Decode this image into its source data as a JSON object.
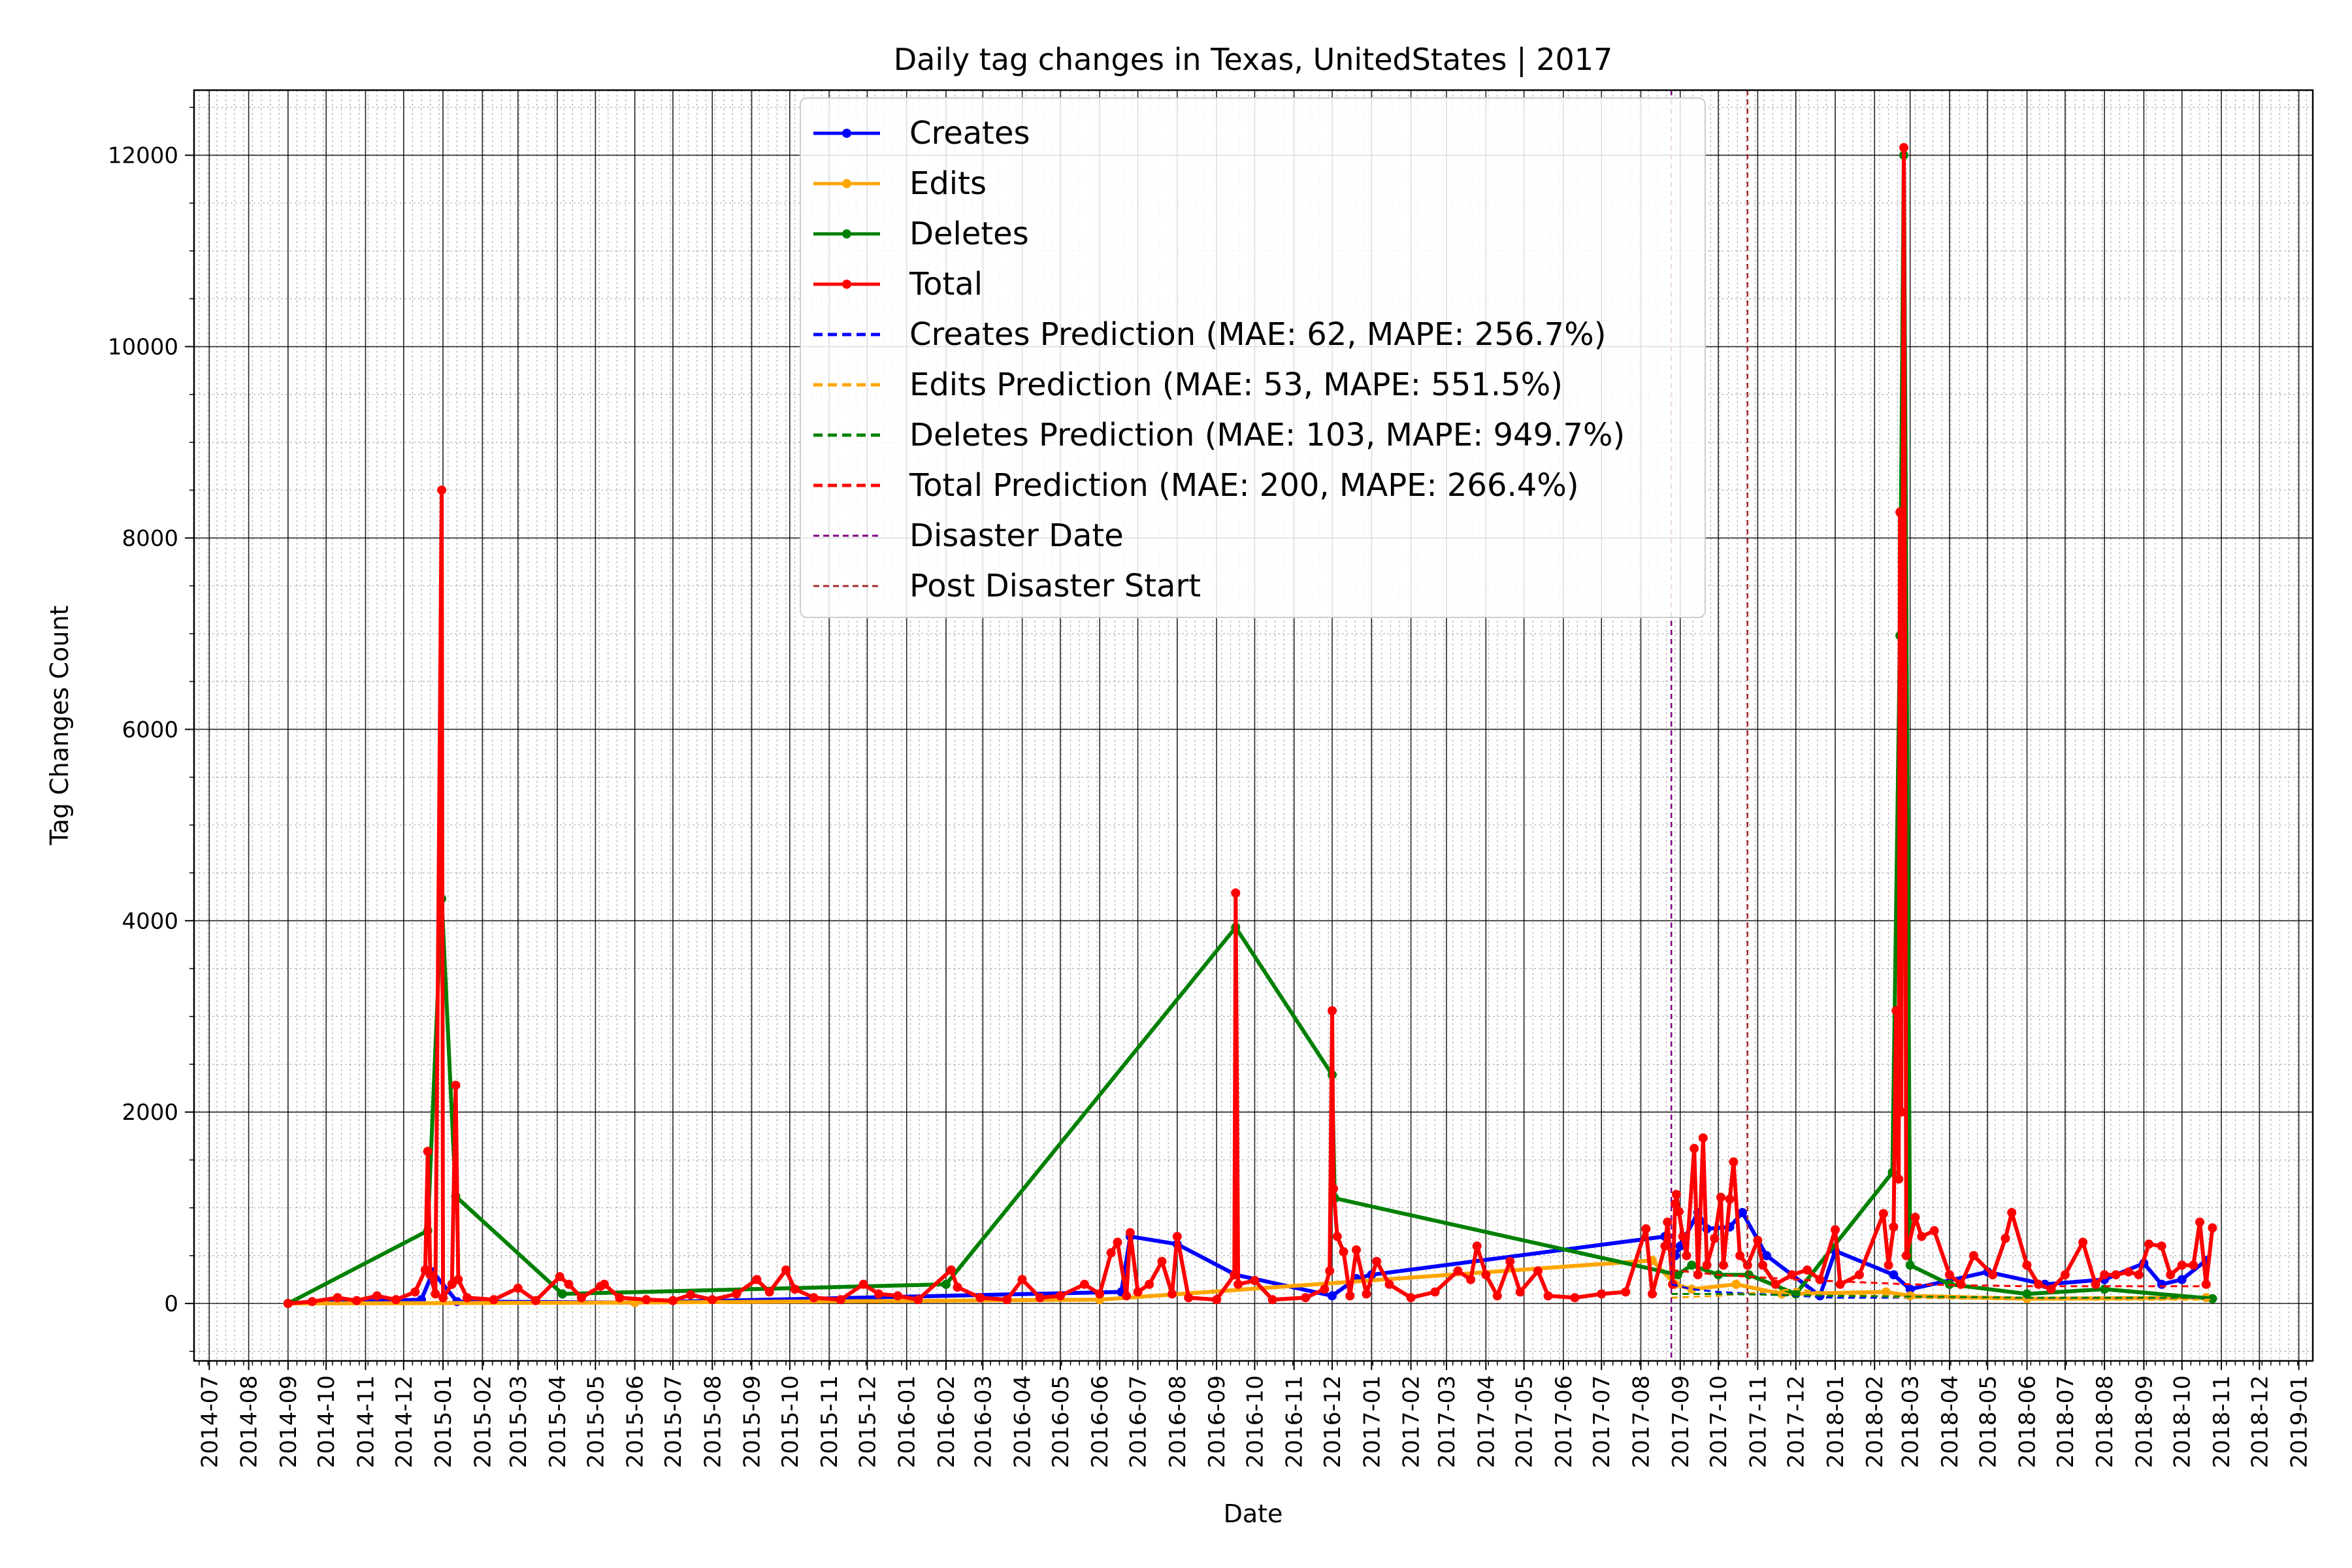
{
  "chart_data": {
    "type": "line",
    "title": "Daily tag changes in Texas, UnitedStates | 2017",
    "xlabel": "Date",
    "ylabel": "Tag Changes Count",
    "x_range": [
      "2014-06-19",
      "2019-01-12"
    ],
    "ylim": [
      -600,
      12680
    ],
    "yticks": [
      0,
      2000,
      4000,
      6000,
      8000,
      10000,
      12000
    ],
    "xticks": [
      "2014-07",
      "2014-08",
      "2014-09",
      "2014-10",
      "2014-11",
      "2014-12",
      "2015-01",
      "2015-02",
      "2015-03",
      "2015-04",
      "2015-05",
      "2015-06",
      "2015-07",
      "2015-08",
      "2015-09",
      "2015-10",
      "2015-11",
      "2015-12",
      "2016-01",
      "2016-02",
      "2016-03",
      "2016-04",
      "2016-05",
      "2016-06",
      "2016-07",
      "2016-08",
      "2016-09",
      "2016-10",
      "2016-11",
      "2016-12",
      "2017-01",
      "2017-02",
      "2017-03",
      "2017-04",
      "2017-05",
      "2017-06",
      "2017-07",
      "2017-08",
      "2017-09",
      "2017-10",
      "2017-11",
      "2017-12",
      "2018-01",
      "2018-02",
      "2018-03",
      "2018-04",
      "2018-05",
      "2018-06",
      "2018-07",
      "2018-08",
      "2018-09",
      "2018-10",
      "2018-11",
      "2018-12",
      "2019-01"
    ],
    "grid": true,
    "legend_position": "top-center",
    "series": [
      {
        "name": "Creates",
        "color": "#0000ff",
        "style": "line-marker",
        "points": [
          [
            "2014-09-01",
            0
          ],
          [
            "2014-12-15",
            40
          ],
          [
            "2014-12-24",
            330
          ],
          [
            "2015-01-12",
            20
          ],
          [
            "2015-06-01",
            10
          ],
          [
            "2016-06-18",
            120
          ],
          [
            "2016-06-25",
            700
          ],
          [
            "2016-08-01",
            620
          ],
          [
            "2016-09-16",
            300
          ],
          [
            "2016-12-01",
            80
          ],
          [
            "2016-12-20",
            260
          ],
          [
            "2017-01-01",
            300
          ],
          [
            "2017-08-20",
            700
          ],
          [
            "2017-08-28",
            500
          ],
          [
            "2017-09-01",
            600
          ],
          [
            "2017-09-15",
            950
          ],
          [
            "2017-09-22",
            780
          ],
          [
            "2017-10-10",
            800
          ],
          [
            "2017-10-20",
            950
          ],
          [
            "2017-11-08",
            500
          ],
          [
            "2017-12-20",
            80
          ],
          [
            "2018-01-01",
            550
          ],
          [
            "2018-02-16",
            300
          ],
          [
            "2018-03-01",
            150
          ],
          [
            "2018-05-01",
            330
          ],
          [
            "2018-06-15",
            200
          ],
          [
            "2018-08-01",
            250
          ],
          [
            "2018-09-01",
            420
          ],
          [
            "2018-09-15",
            200
          ],
          [
            "2018-10-01",
            250
          ],
          [
            "2018-10-20",
            450
          ]
        ]
      },
      {
        "name": "Edits",
        "color": "#ffa500",
        "style": "line-marker",
        "points": [
          [
            "2014-09-01",
            0
          ],
          [
            "2015-06-01",
            10
          ],
          [
            "2016-06-01",
            40
          ],
          [
            "2017-08-10",
            450
          ],
          [
            "2017-08-28",
            200
          ],
          [
            "2017-09-10",
            150
          ],
          [
            "2017-10-15",
            200
          ],
          [
            "2017-11-20",
            100
          ],
          [
            "2018-02-10",
            120
          ],
          [
            "2018-03-01",
            80
          ],
          [
            "2018-06-01",
            50
          ],
          [
            "2018-10-20",
            60
          ]
        ]
      },
      {
        "name": "Deletes",
        "color": "#008000",
        "style": "line-marker",
        "points": [
          [
            "2014-09-01",
            0
          ],
          [
            "2014-12-20",
            760
          ],
          [
            "2014-12-31",
            4230
          ],
          [
            "2015-01-11",
            1120
          ],
          [
            "2015-04-05",
            100
          ],
          [
            "2016-02-01",
            200
          ],
          [
            "2016-09-16",
            3930
          ],
          [
            "2016-12-01",
            2390
          ],
          [
            "2016-12-03",
            1100
          ],
          [
            "2017-08-30",
            300
          ],
          [
            "2017-09-10",
            400
          ],
          [
            "2017-10-01",
            300
          ],
          [
            "2017-10-25",
            300
          ],
          [
            "2017-12-01",
            100
          ],
          [
            "2018-02-15",
            1370
          ],
          [
            "2018-02-21",
            6980
          ],
          [
            "2018-02-24",
            12000
          ],
          [
            "2018-03-01",
            400
          ],
          [
            "2018-04-01",
            200
          ],
          [
            "2018-06-01",
            100
          ],
          [
            "2018-08-01",
            150
          ],
          [
            "2018-10-25",
            50
          ]
        ]
      },
      {
        "name": "Total",
        "color": "#ff0000",
        "style": "line-marker",
        "points": [
          [
            "2014-09-01",
            0
          ],
          [
            "2014-09-20",
            20
          ],
          [
            "2014-10-10",
            60
          ],
          [
            "2014-10-25",
            30
          ],
          [
            "2014-11-10",
            80
          ],
          [
            "2014-11-25",
            40
          ],
          [
            "2014-12-10",
            120
          ],
          [
            "2014-12-18",
            350
          ],
          [
            "2014-12-20",
            1590
          ],
          [
            "2014-12-22",
            300
          ],
          [
            "2014-12-26",
            100
          ],
          [
            "2014-12-31",
            8500
          ],
          [
            "2015-01-01",
            60
          ],
          [
            "2015-01-08",
            200
          ],
          [
            "2015-01-11",
            2280
          ],
          [
            "2015-01-13",
            250
          ],
          [
            "2015-01-20",
            60
          ],
          [
            "2015-02-10",
            40
          ],
          [
            "2015-03-01",
            160
          ],
          [
            "2015-03-15",
            30
          ],
          [
            "2015-04-03",
            280
          ],
          [
            "2015-04-10",
            200
          ],
          [
            "2015-04-20",
            60
          ],
          [
            "2015-05-05",
            180
          ],
          [
            "2015-05-08",
            200
          ],
          [
            "2015-05-20",
            60
          ],
          [
            "2015-06-10",
            40
          ],
          [
            "2015-07-01",
            30
          ],
          [
            "2015-07-15",
            90
          ],
          [
            "2015-08-01",
            40
          ],
          [
            "2015-08-20",
            100
          ],
          [
            "2015-09-05",
            250
          ],
          [
            "2015-09-15",
            120
          ],
          [
            "2015-09-28",
            350
          ],
          [
            "2015-10-05",
            150
          ],
          [
            "2015-10-20",
            60
          ],
          [
            "2015-11-10",
            40
          ],
          [
            "2015-11-28",
            200
          ],
          [
            "2015-12-10",
            100
          ],
          [
            "2015-12-25",
            80
          ],
          [
            "2016-01-10",
            40
          ],
          [
            "2016-02-05",
            350
          ],
          [
            "2016-02-10",
            170
          ],
          [
            "2016-02-28",
            60
          ],
          [
            "2016-03-20",
            40
          ],
          [
            "2016-04-01",
            250
          ],
          [
            "2016-04-15",
            60
          ],
          [
            "2016-05-01",
            80
          ],
          [
            "2016-05-20",
            200
          ],
          [
            "2016-06-01",
            100
          ],
          [
            "2016-06-10",
            530
          ],
          [
            "2016-06-15",
            640
          ],
          [
            "2016-06-22",
            80
          ],
          [
            "2016-06-25",
            740
          ],
          [
            "2016-07-01",
            120
          ],
          [
            "2016-07-10",
            200
          ],
          [
            "2016-07-20",
            440
          ],
          [
            "2016-07-28",
            100
          ],
          [
            "2016-08-01",
            700
          ],
          [
            "2016-08-10",
            60
          ],
          [
            "2016-09-01",
            40
          ],
          [
            "2016-09-15",
            300
          ],
          [
            "2016-09-16",
            4290
          ],
          [
            "2016-09-18",
            200
          ],
          [
            "2016-10-01",
            240
          ],
          [
            "2016-10-15",
            40
          ],
          [
            "2016-11-10",
            60
          ],
          [
            "2016-11-25",
            150
          ],
          [
            "2016-11-29",
            340
          ],
          [
            "2016-12-01",
            3060
          ],
          [
            "2016-12-02",
            1200
          ],
          [
            "2016-12-05",
            700
          ],
          [
            "2016-12-10",
            540
          ],
          [
            "2016-12-15",
            80
          ],
          [
            "2016-12-20",
            560
          ],
          [
            "2016-12-28",
            100
          ],
          [
            "2017-01-05",
            440
          ],
          [
            "2017-01-15",
            200
          ],
          [
            "2017-02-01",
            60
          ],
          [
            "2017-02-20",
            120
          ],
          [
            "2017-03-10",
            340
          ],
          [
            "2017-03-20",
            250
          ],
          [
            "2017-03-25",
            600
          ],
          [
            "2017-04-01",
            300
          ],
          [
            "2017-04-10",
            80
          ],
          [
            "2017-04-20",
            440
          ],
          [
            "2017-04-28",
            120
          ],
          [
            "2017-05-12",
            340
          ],
          [
            "2017-05-20",
            80
          ],
          [
            "2017-06-10",
            60
          ],
          [
            "2017-07-01",
            100
          ],
          [
            "2017-07-20",
            120
          ],
          [
            "2017-08-05",
            780
          ],
          [
            "2017-08-10",
            100
          ],
          [
            "2017-08-20",
            600
          ],
          [
            "2017-08-22",
            850
          ],
          [
            "2017-08-26",
            200
          ],
          [
            "2017-08-28",
            1040
          ],
          [
            "2017-08-29",
            1140
          ],
          [
            "2017-08-31",
            960
          ],
          [
            "2017-09-03",
            700
          ],
          [
            "2017-09-06",
            500
          ],
          [
            "2017-09-12",
            1620
          ],
          [
            "2017-09-15",
            300
          ],
          [
            "2017-09-19",
            1730
          ],
          [
            "2017-09-22",
            400
          ],
          [
            "2017-09-28",
            680
          ],
          [
            "2017-10-03",
            1110
          ],
          [
            "2017-10-05",
            400
          ],
          [
            "2017-10-10",
            1090
          ],
          [
            "2017-10-13",
            1480
          ],
          [
            "2017-10-18",
            500
          ],
          [
            "2017-10-24",
            400
          ],
          [
            "2017-11-01",
            660
          ],
          [
            "2017-11-05",
            400
          ],
          [
            "2017-11-15",
            200
          ],
          [
            "2017-11-28",
            300
          ],
          [
            "2017-12-10",
            350
          ],
          [
            "2017-12-20",
            250
          ],
          [
            "2018-01-01",
            770
          ],
          [
            "2018-01-05",
            200
          ],
          [
            "2018-01-20",
            300
          ],
          [
            "2018-02-08",
            940
          ],
          [
            "2018-02-12",
            400
          ],
          [
            "2018-02-16",
            800
          ],
          [
            "2018-02-18",
            3060
          ],
          [
            "2018-02-20",
            1300
          ],
          [
            "2018-02-21",
            8270
          ],
          [
            "2018-02-22",
            2000
          ],
          [
            "2018-02-24",
            12080
          ],
          [
            "2018-02-26",
            500
          ],
          [
            "2018-03-05",
            900
          ],
          [
            "2018-03-10",
            700
          ],
          [
            "2018-03-20",
            760
          ],
          [
            "2018-04-01",
            300
          ],
          [
            "2018-04-10",
            200
          ],
          [
            "2018-04-20",
            500
          ],
          [
            "2018-05-05",
            300
          ],
          [
            "2018-05-15",
            680
          ],
          [
            "2018-05-20",
            950
          ],
          [
            "2018-06-01",
            400
          ],
          [
            "2018-06-10",
            200
          ],
          [
            "2018-06-20",
            150
          ],
          [
            "2018-07-01",
            300
          ],
          [
            "2018-07-15",
            640
          ],
          [
            "2018-07-25",
            200
          ],
          [
            "2018-08-01",
            300
          ],
          [
            "2018-08-10",
            300
          ],
          [
            "2018-08-20",
            330
          ],
          [
            "2018-08-28",
            300
          ],
          [
            "2018-09-05",
            620
          ],
          [
            "2018-09-15",
            600
          ],
          [
            "2018-09-22",
            300
          ],
          [
            "2018-10-01",
            400
          ],
          [
            "2018-10-10",
            400
          ],
          [
            "2018-10-15",
            850
          ],
          [
            "2018-10-20",
            200
          ],
          [
            "2018-10-25",
            790
          ]
        ]
      },
      {
        "name": "Creates Prediction (MAE: 62, MAPE: 256.7%)",
        "color": "#0000ff",
        "style": "dashed",
        "points": [
          [
            "2017-08-25",
            200
          ],
          [
            "2017-09-10",
            150
          ],
          [
            "2017-10-01",
            120
          ],
          [
            "2017-11-01",
            100
          ],
          [
            "2018-01-01",
            60
          ],
          [
            "2018-03-01",
            60
          ],
          [
            "2018-06-01",
            50
          ],
          [
            "2018-10-25",
            50
          ]
        ]
      },
      {
        "name": "Edits Prediction (MAE: 53, MAPE: 551.5%)",
        "color": "#ffa500",
        "style": "dashed",
        "points": [
          [
            "2017-08-25",
            60
          ],
          [
            "2017-10-01",
            80
          ],
          [
            "2017-12-01",
            150
          ],
          [
            "2018-01-01",
            100
          ],
          [
            "2018-03-01",
            60
          ],
          [
            "2018-06-01",
            40
          ],
          [
            "2018-10-25",
            40
          ]
        ]
      },
      {
        "name": "Deletes Prediction (MAE: 103, MAPE: 949.7%)",
        "color": "#008000",
        "style": "dashed",
        "points": [
          [
            "2017-08-25",
            100
          ],
          [
            "2017-10-01",
            100
          ],
          [
            "2018-01-01",
            80
          ],
          [
            "2018-06-01",
            60
          ],
          [
            "2018-10-25",
            60
          ]
        ]
      },
      {
        "name": "Total Prediction (MAE: 200, MAPE: 266.4%)",
        "color": "#ff0000",
        "style": "dashed",
        "points": [
          [
            "2017-08-25",
            350
          ],
          [
            "2017-10-01",
            300
          ],
          [
            "2017-12-01",
            250
          ],
          [
            "2018-03-01",
            200
          ],
          [
            "2018-06-01",
            180
          ],
          [
            "2018-10-25",
            180
          ]
        ]
      },
      {
        "name": "Disaster Date",
        "color": "#800080",
        "style": "vline",
        "x": "2017-08-25"
      },
      {
        "name": "Post Disaster Start",
        "color": "#a52a2a",
        "style": "vline",
        "x": "2017-10-24"
      }
    ]
  }
}
